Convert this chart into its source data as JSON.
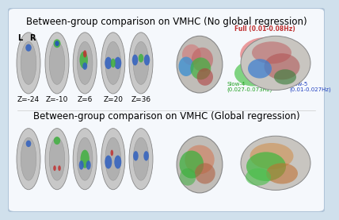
{
  "title_top": "Between-group comparison on VMHC (No global regression)",
  "title_bottom": "Between-group comparison on VMHC (Global regression)",
  "z_labels_top": [
    "Z=-24",
    "Z=-10",
    "Z=6",
    "Z=20",
    "Z=36"
  ],
  "lr_label": [
    "L",
    "R"
  ],
  "legend_title": "Full (0.01-0.08Hz)",
  "legend_slow4": "Slow-4\n(0.027-0.073Hz)",
  "legend_slow5": "Slow-5\n(0.01-0.027Hz)",
  "bg_color": "#f0f4f8",
  "border_color": "#b0c4d8",
  "title_fontsize": 8.5,
  "label_fontsize": 7.0,
  "legend_fontsize": 6.5,
  "fig_bg": "#d0e0ec",
  "panel_bg": "#f5f8fc"
}
